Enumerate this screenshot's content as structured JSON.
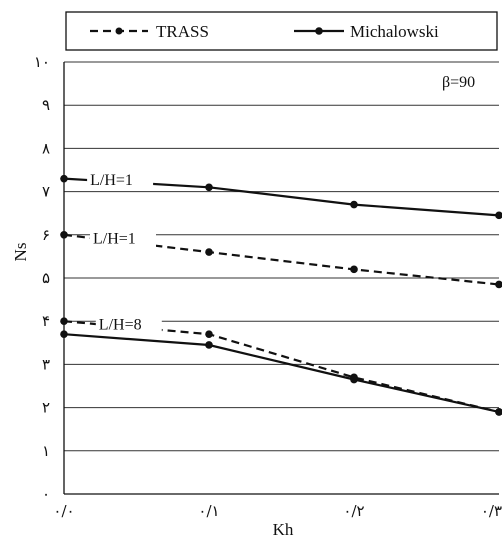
{
  "chart_data": {
    "type": "line",
    "title": "",
    "xlabel": "Kh",
    "ylabel": "Ns",
    "annotation": "β=90",
    "x": [
      0.0,
      0.1,
      0.2,
      0.3
    ],
    "xlim": [
      0.0,
      0.3
    ],
    "ylim": [
      0,
      10
    ],
    "x_tick_labels": [
      "۰/۰",
      "۰/۱",
      "۰/۲",
      "۰/۳"
    ],
    "y_tick_labels": [
      "۰",
      "۱",
      "۲",
      "۳",
      "۴",
      "۵",
      "۶",
      "۷",
      "۸",
      "۹",
      "۱۰"
    ],
    "grid": "horizontal",
    "legend": {
      "placement": "top",
      "entries": [
        "TRASS",
        "Michalowski"
      ]
    },
    "series": [
      {
        "name": "TRASS",
        "style": "dashed",
        "curve_label": "L/H=1",
        "values": [
          6.0,
          5.6,
          5.2,
          4.85
        ]
      },
      {
        "name": "Michalowski",
        "style": "solid",
        "curve_label": "L/H=1",
        "values": [
          7.3,
          7.1,
          6.7,
          6.45
        ]
      },
      {
        "name": "TRASS",
        "style": "dashed",
        "curve_label": "L/H=8",
        "values": [
          4.0,
          3.7,
          2.7,
          1.9
        ]
      },
      {
        "name": "Michalowski",
        "style": "solid",
        "curve_label": "L/H=8",
        "values": [
          3.7,
          3.45,
          2.65,
          1.9
        ]
      }
    ],
    "colors": {
      "line": "#111111",
      "grid": "#333333"
    }
  }
}
